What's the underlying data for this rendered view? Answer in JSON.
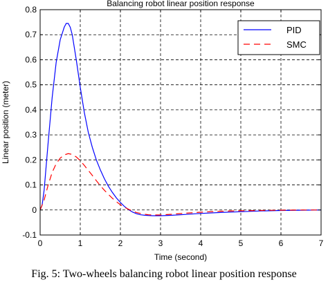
{
  "caption": "Fig. 5: Two-wheels balancing robot linear position response",
  "chart_data": {
    "type": "line",
    "title": "Balancing robot linear position response",
    "xlabel": "Time (second)",
    "ylabel": "Linear position (meter)",
    "xlim": [
      0,
      7
    ],
    "ylim": [
      -0.1,
      0.8
    ],
    "xticks": [
      0,
      1,
      2,
      3,
      4,
      5,
      6,
      7
    ],
    "xtick_labels": [
      "0",
      "1",
      "2",
      "3",
      "4",
      "5",
      "6",
      "7"
    ],
    "yticks": [
      -0.1,
      0,
      0.1,
      0.2,
      0.3,
      0.4,
      0.5,
      0.6,
      0.7,
      0.8
    ],
    "ytick_labels": [
      "-0.1",
      "0",
      "0.1",
      "0.2",
      "0.3",
      "0.4",
      "0.5",
      "0.6",
      "0.7",
      "0.8"
    ],
    "grid": true,
    "legend_position": "top-right",
    "series": [
      {
        "name": "PID",
        "color": "#0000ff",
        "style": "solid",
        "x": [
          0,
          0.05,
          0.1,
          0.2,
          0.3,
          0.4,
          0.5,
          0.6,
          0.65,
          0.7,
          0.75,
          0.8,
          0.9,
          1.0,
          1.1,
          1.2,
          1.3,
          1.4,
          1.5,
          1.6,
          1.7,
          1.8,
          1.9,
          2.0,
          2.1,
          2.2,
          2.3,
          2.4,
          2.5,
          2.6,
          2.8,
          3.0,
          3.3,
          3.6,
          4.0,
          4.5,
          5.0,
          5.5,
          6.0,
          6.5,
          7.0
        ],
        "y": [
          0,
          0.02,
          0.08,
          0.27,
          0.45,
          0.59,
          0.68,
          0.73,
          0.745,
          0.745,
          0.73,
          0.7,
          0.6,
          0.49,
          0.39,
          0.31,
          0.25,
          0.2,
          0.16,
          0.125,
          0.095,
          0.07,
          0.048,
          0.03,
          0.014,
          0.002,
          -0.008,
          -0.015,
          -0.019,
          -0.021,
          -0.023,
          -0.023,
          -0.021,
          -0.018,
          -0.014,
          -0.01,
          -0.007,
          -0.004,
          -0.002,
          -0.001,
          0
        ]
      },
      {
        "name": "SMC",
        "color": "#ff0000",
        "style": "dashed",
        "x": [
          0,
          0.1,
          0.2,
          0.3,
          0.4,
          0.5,
          0.6,
          0.7,
          0.8,
          0.9,
          1.0,
          1.1,
          1.2,
          1.3,
          1.4,
          1.5,
          1.6,
          1.7,
          1.8,
          1.9,
          2.0,
          2.1,
          2.2,
          2.3,
          2.4,
          2.5,
          2.6,
          2.7,
          2.8,
          3.0,
          3.3,
          3.6,
          4.0,
          4.5,
          5.0,
          5.5,
          6.0,
          6.5,
          7.0
        ],
        "y": [
          0,
          0.04,
          0.1,
          0.15,
          0.185,
          0.207,
          0.22,
          0.225,
          0.222,
          0.212,
          0.197,
          0.178,
          0.158,
          0.138,
          0.117,
          0.097,
          0.079,
          0.062,
          0.047,
          0.033,
          0.021,
          0.011,
          0.003,
          -0.004,
          -0.01,
          -0.014,
          -0.017,
          -0.019,
          -0.02,
          -0.02,
          -0.017,
          -0.013,
          -0.009,
          -0.005,
          -0.003,
          -0.002,
          -0.001,
          0,
          0
        ]
      }
    ]
  }
}
